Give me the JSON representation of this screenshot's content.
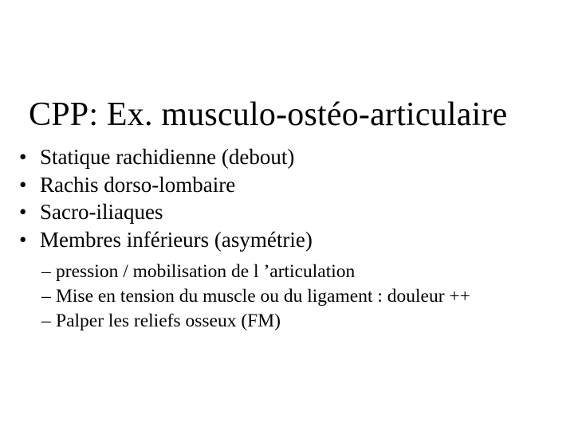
{
  "title": "CPP: Ex. musculo-ostéo-articulaire",
  "bullets": [
    "Statique rachidienne (debout)",
    "Rachis dorso-lombaire",
    "Sacro-iliaques",
    "Membres inférieurs (asymétrie)"
  ],
  "subbullets": [
    "pression / mobilisation de l ’articulation",
    "Mise en tension du muscle ou du ligament : douleur ++",
    "Palper les reliefs osseux (FM)"
  ],
  "colors": {
    "background": "#ffffff",
    "text": "#000000"
  },
  "typography": {
    "family": "Times New Roman",
    "title_size_pt": 32,
    "body_size_pt": 20,
    "sub_size_pt": 18
  }
}
